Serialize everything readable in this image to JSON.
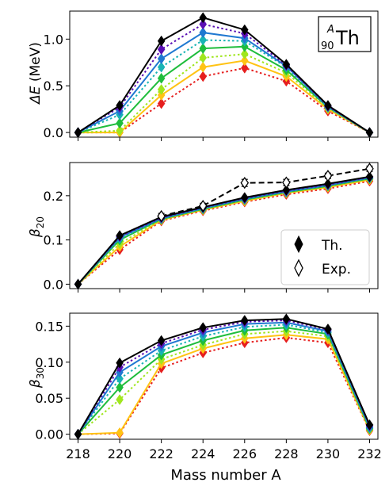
{
  "figure": {
    "xlabel": "Mass number A",
    "element_label": {
      "mass_symbol": "A",
      "proton_number": "90",
      "symbol": "Th"
    },
    "legend": [
      {
        "label": "Th.",
        "marker": "filled-diamond"
      },
      {
        "label": "Exp.",
        "marker": "open-diamond"
      }
    ]
  },
  "chart_data": [
    {
      "type": "line",
      "panel": "top",
      "ylabel_main": "ΔE",
      "ylabel_unit": " (MeV)",
      "x": [
        218,
        220,
        222,
        224,
        226,
        228,
        230,
        232
      ],
      "xlim": [
        217.6,
        232.4
      ],
      "ylim": [
        -0.05,
        1.3
      ],
      "yticks": [
        "0.0",
        "0.5",
        "1.0"
      ],
      "ytick_values": [
        0.0,
        0.5,
        1.0
      ],
      "xticks_labeled": false,
      "series": [
        {
          "color": "#000000",
          "dash": false,
          "values": [
            0.0,
            0.29,
            0.98,
            1.23,
            1.1,
            0.73,
            0.29,
            0.0
          ]
        },
        {
          "color": "#5a0fb4",
          "dash": true,
          "values": [
            0.0,
            0.27,
            0.89,
            1.16,
            1.06,
            0.72,
            0.28,
            0.0
          ]
        },
        {
          "color": "#1f78d1",
          "dash": false,
          "values": [
            0.0,
            0.23,
            0.79,
            1.07,
            1.01,
            0.71,
            0.28,
            0.0
          ]
        },
        {
          "color": "#19b4b4",
          "dash": true,
          "values": [
            0.0,
            0.19,
            0.7,
            0.99,
            0.98,
            0.7,
            0.27,
            0.0
          ]
        },
        {
          "color": "#1fbd3c",
          "dash": false,
          "values": [
            0.0,
            0.1,
            0.58,
            0.9,
            0.92,
            0.67,
            0.27,
            0.0
          ]
        },
        {
          "color": "#a0e61e",
          "dash": true,
          "values": [
            0.0,
            0.02,
            0.46,
            0.8,
            0.84,
            0.64,
            0.26,
            0.0
          ]
        },
        {
          "color": "#ffc314",
          "dash": false,
          "values": [
            0.0,
            0.0,
            0.4,
            0.7,
            0.77,
            0.6,
            0.25,
            0.0
          ]
        },
        {
          "color": "#e61e1e",
          "dash": true,
          "values": [
            0.0,
            0.0,
            0.31,
            0.6,
            0.69,
            0.55,
            0.23,
            0.0
          ]
        }
      ]
    },
    {
      "type": "line",
      "panel": "middle",
      "ylabel_main": "β",
      "ylabel_sub": "20",
      "x": [
        218,
        220,
        222,
        224,
        226,
        228,
        230,
        232
      ],
      "xlim": [
        217.6,
        232.4
      ],
      "ylim": [
        -0.01,
        0.275
      ],
      "yticks": [
        "0.0",
        "0.1",
        "0.2"
      ],
      "ytick_values": [
        0.0,
        0.1,
        0.2
      ],
      "xticks_labeled": false,
      "series": [
        {
          "color": "#000000",
          "dash": false,
          "values": [
            0.0,
            0.11,
            0.152,
            0.174,
            0.196,
            0.213,
            0.227,
            0.243
          ]
        },
        {
          "color": "#5a0fb4",
          "dash": true,
          "values": [
            0.0,
            0.108,
            0.15,
            0.173,
            0.194,
            0.211,
            0.225,
            0.242
          ]
        },
        {
          "color": "#1f78d1",
          "dash": false,
          "values": [
            0.0,
            0.106,
            0.149,
            0.172,
            0.193,
            0.21,
            0.224,
            0.241
          ]
        },
        {
          "color": "#19b4b4",
          "dash": true,
          "values": [
            0.0,
            0.103,
            0.148,
            0.171,
            0.192,
            0.209,
            0.223,
            0.24
          ]
        },
        {
          "color": "#1fbd3c",
          "dash": false,
          "values": [
            0.0,
            0.1,
            0.147,
            0.17,
            0.191,
            0.208,
            0.222,
            0.239
          ]
        },
        {
          "color": "#a0e61e",
          "dash": true,
          "values": [
            0.0,
            0.092,
            0.146,
            0.169,
            0.19,
            0.207,
            0.221,
            0.238
          ]
        },
        {
          "color": "#ffc314",
          "dash": false,
          "values": [
            0.0,
            0.085,
            0.145,
            0.168,
            0.188,
            0.206,
            0.219,
            0.236
          ]
        },
        {
          "color": "#e61e1e",
          "dash": true,
          "values": [
            0.0,
            0.078,
            0.143,
            0.166,
            0.186,
            0.203,
            0.216,
            0.233
          ]
        }
      ],
      "experiment": {
        "color": "#000000",
        "x": [
          222,
          224,
          226,
          228,
          230,
          232
        ],
        "values": [
          0.154,
          0.177,
          0.229,
          0.23,
          0.245,
          0.261
        ],
        "errors": [
          0.006,
          0.006,
          0.008,
          0.007,
          0.006,
          0.006
        ]
      }
    },
    {
      "type": "line",
      "panel": "bottom",
      "ylabel_main": "β",
      "ylabel_sub": "30",
      "x": [
        218,
        220,
        222,
        224,
        226,
        228,
        230,
        232
      ],
      "xlim": [
        217.6,
        232.4
      ],
      "ylim": [
        -0.007,
        0.168
      ],
      "yticks": [
        "0.00",
        "0.05",
        "0.10",
        "0.15"
      ],
      "ytick_values": [
        0.0,
        0.05,
        0.1,
        0.15
      ],
      "xticks_labeled": true,
      "xtick_labels": [
        "218",
        "220",
        "222",
        "224",
        "226",
        "228",
        "230",
        "232"
      ],
      "series": [
        {
          "color": "#000000",
          "dash": false,
          "values": [
            0.0,
            0.099,
            0.13,
            0.148,
            0.158,
            0.16,
            0.146,
            0.013
          ]
        },
        {
          "color": "#5a0fb4",
          "dash": true,
          "values": [
            0.0,
            0.093,
            0.126,
            0.145,
            0.156,
            0.158,
            0.145,
            0.012
          ]
        },
        {
          "color": "#1f78d1",
          "dash": false,
          "values": [
            0.0,
            0.086,
            0.122,
            0.141,
            0.153,
            0.155,
            0.143,
            0.01
          ]
        },
        {
          "color": "#19b4b4",
          "dash": true,
          "values": [
            0.0,
            0.077,
            0.116,
            0.136,
            0.149,
            0.152,
            0.141,
            0.009
          ]
        },
        {
          "color": "#1fbd3c",
          "dash": false,
          "values": [
            0.0,
            0.065,
            0.11,
            0.13,
            0.144,
            0.148,
            0.139,
            0.008
          ]
        },
        {
          "color": "#a0e61e",
          "dash": true,
          "values": [
            0.0,
            0.048,
            0.104,
            0.124,
            0.139,
            0.143,
            0.136,
            0.007
          ]
        },
        {
          "color": "#ffc314",
          "dash": false,
          "values": [
            0.0,
            0.002,
            0.098,
            0.119,
            0.133,
            0.138,
            0.132,
            0.006
          ]
        },
        {
          "color": "#e61e1e",
          "dash": true,
          "values": [
            0.0,
            0.001,
            0.092,
            0.113,
            0.127,
            0.134,
            0.127,
            0.005
          ]
        }
      ]
    }
  ]
}
